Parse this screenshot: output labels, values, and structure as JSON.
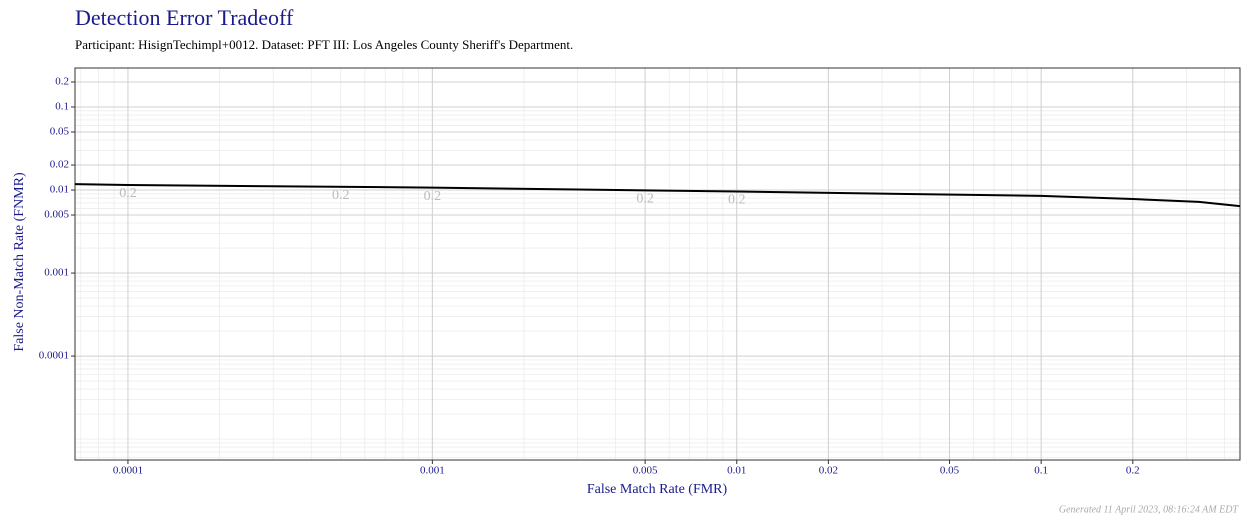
{
  "chart_data": {
    "type": "line",
    "title": "Detection Error Tradeoff",
    "subtitle": "Participant: HisignTechimpl+0012. Dataset: PFT III: Los Angeles County Sheriff's Department.",
    "x_label": "False Match Rate (FMR)",
    "y_label": "False Non-Match Rate (FNMR)",
    "footer": "Generated 11 April 2023, 08:16:24 AM EDT",
    "x_log": true,
    "y_log": true,
    "grid": true,
    "xlim": [
      6.7e-05,
      0.45
    ],
    "ylim": [
      5.6e-06,
      0.295
    ],
    "xticks": [
      0.0001,
      0.001,
      0.005,
      0.01,
      0.02,
      0.05,
      0.1,
      0.2
    ],
    "yticks": [
      0.0001,
      0.001,
      0.005,
      0.01,
      0.02,
      0.05,
      0.1,
      0.2
    ],
    "series": [
      {
        "color": "#000000",
        "x": [
          6.7e-05,
          0.0001,
          0.001,
          0.01,
          0.1,
          0.2,
          0.33,
          0.45
        ],
        "values": [
          0.0118,
          0.0115,
          0.0107,
          0.0096,
          0.0085,
          0.0078,
          0.0072,
          0.0064
        ]
      }
    ],
    "annotations": [
      {
        "text": "0.2",
        "x": 0.0001,
        "y": 0.0115
      },
      {
        "text": "0.2",
        "x": 0.0005,
        "y": 0.011
      },
      {
        "text": "0.2",
        "x": 0.001,
        "y": 0.0107
      },
      {
        "text": "0.2",
        "x": 0.005,
        "y": 0.0099
      },
      {
        "text": "0.2",
        "x": 0.01,
        "y": 0.0096
      }
    ]
  }
}
